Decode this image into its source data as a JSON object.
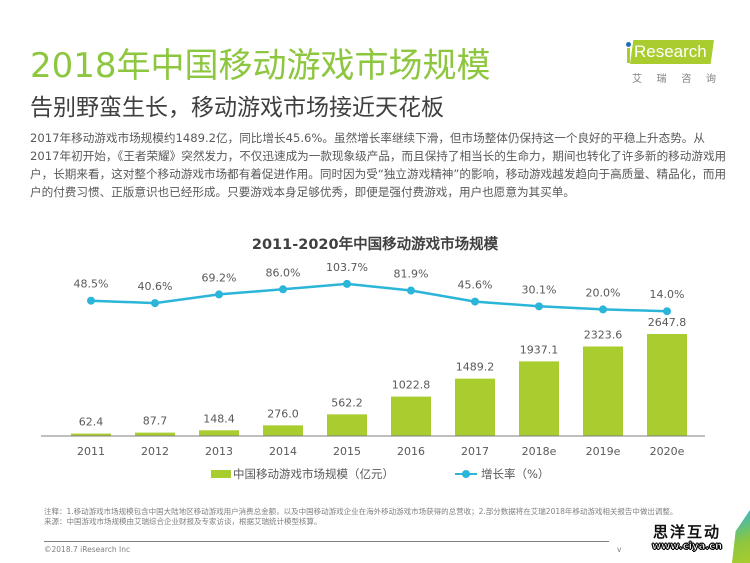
{
  "header": {
    "title": "2018年中国移动游戏市场规模",
    "subtitle": "告别野蛮生长，移动游戏市场接近天花板"
  },
  "logo": {
    "text": "Research",
    "cn_chars": [
      "艾",
      "瑞",
      "咨",
      "询"
    ]
  },
  "body": {
    "paragraph": "2017年移动游戏市场规模约1489.2亿，同比增长45.6%。虽然增长率继续下滑，但市场整体仍保持这一个良好的平稳上升态势。从2017年初开始，《王者荣耀》突然发力，不仅迅速成为一款现象级产品，而且保持了相当长的生命力，期间也转化了许多新的移动游戏用户，长期来看，这对整个移动游戏市场都有着促进作用。同时因为受“独立游戏精神”的影响，移动游戏越发趋向于高质量、精品化，而用户的付费习惯、正版意识也已经形成。只要游戏本身足够优秀，即便是强付费游戏，用户也愿意为其买单。"
  },
  "colors": {
    "accent_green": "#8dc63f",
    "bar_green": "#a9cc2e",
    "line_blue": "#2bb5d8",
    "text_gray": "#595959"
  },
  "chart_data": {
    "type": "bar+line",
    "title": "2011-2020年中国移动游戏市场规模",
    "categories": [
      "2011",
      "2012",
      "2013",
      "2014",
      "2015",
      "2016",
      "2017",
      "2018e",
      "2019e",
      "2020e"
    ],
    "series": [
      {
        "name": "中国移动游戏市场规模（亿元）",
        "type": "bar",
        "values": [
          62.4,
          87.7,
          148.4,
          276.0,
          562.2,
          1022.8,
          1489.2,
          1937.1,
          2323.6,
          2647.8
        ],
        "labels": [
          "62.4",
          "87.7",
          "148.4",
          "276.0",
          "562.2",
          "1022.8",
          "1489.2",
          "1937.1",
          "2323.6",
          "2647.8"
        ]
      },
      {
        "name": "增长率（%）",
        "type": "line",
        "values": [
          48.5,
          40.6,
          69.2,
          86.0,
          103.7,
          81.9,
          45.6,
          30.1,
          20.0,
          14.0
        ],
        "labels": [
          "48.5%",
          "40.6%",
          "69.2%",
          "86.0%",
          "103.7%",
          "81.9%",
          "45.6%",
          "30.1%",
          "20.0%",
          "14.0%"
        ]
      }
    ],
    "xlabel": "",
    "ylabel": "",
    "legend_position": "bottom",
    "grid": false
  },
  "footer": {
    "note_line1": "注释：1.移动游戏市场规模包含中国大陆地区移动游戏用户消费总金额，以及中国移动游戏企业在海外移动游戏市场获得的总营收；2.部分数据将在艾瑞2018年移动游戏相关报告中做出调整。",
    "source": "来源：中国游戏市场规模由艾瑞综合企业财报及专家访谈，根据艾瑞统计模型核算。",
    "copyright": "©2018.7 iResearch Inc",
    "page_mark": "v"
  },
  "watermark": {
    "cn": "思洋互动",
    "url": "www.ciya.cn"
  }
}
